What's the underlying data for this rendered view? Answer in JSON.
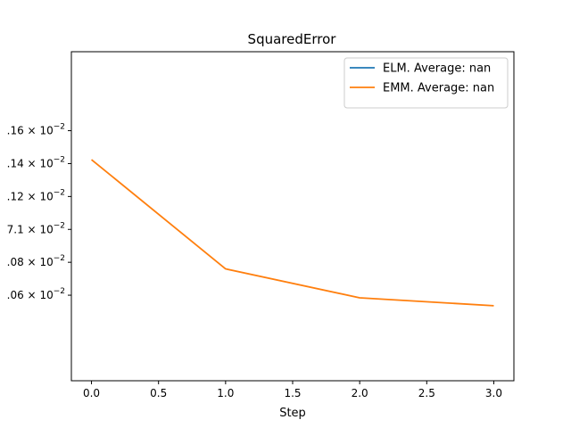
{
  "chart_data": {
    "type": "line",
    "title": "SquaredError",
    "xlabel": "Step",
    "ylabel": "",
    "xlim": [
      -0.15,
      3.15
    ],
    "ylim": [
      0.055,
      0.0575
    ],
    "x_ticks": [
      {
        "value": 0.0,
        "label": "0.0"
      },
      {
        "value": 0.5,
        "label": "0.5"
      },
      {
        "value": 1.0,
        "label": "1.0"
      },
      {
        "value": 1.5,
        "label": "1.5"
      },
      {
        "value": 2.0,
        "label": "2.0"
      },
      {
        "value": 2.5,
        "label": "2.5"
      },
      {
        "value": 3.0,
        "label": "3.0"
      }
    ],
    "y_ticks": [
      {
        "value": 0.05565,
        "mantissa": ".06",
        "base": "10",
        "exp": "−2"
      },
      {
        "value": 0.0559,
        "mantissa": ".08",
        "base": "10",
        "exp": "−2"
      },
      {
        "value": 0.05615,
        "mantissa": "7.1",
        "base": "10",
        "exp": "−2"
      },
      {
        "value": 0.0564,
        "mantissa": ".12",
        "base": "10",
        "exp": "−2"
      },
      {
        "value": 0.05665,
        "mantissa": ".14",
        "base": "10",
        "exp": "−2"
      },
      {
        "value": 0.0569,
        "mantissa": ".16",
        "base": "10",
        "exp": "−2"
      }
    ],
    "legend_position": "top-right",
    "grid": false,
    "series": [
      {
        "name": "ELM. Average: nan",
        "color": "#1f77b4",
        "x": [],
        "y": []
      },
      {
        "name": "EMM. Average: nan",
        "color": "#ff7f0e",
        "x": [
          0,
          1,
          2,
          3
        ],
        "y": [
          0.05668,
          0.05585,
          0.05563,
          0.05557
        ]
      }
    ]
  }
}
